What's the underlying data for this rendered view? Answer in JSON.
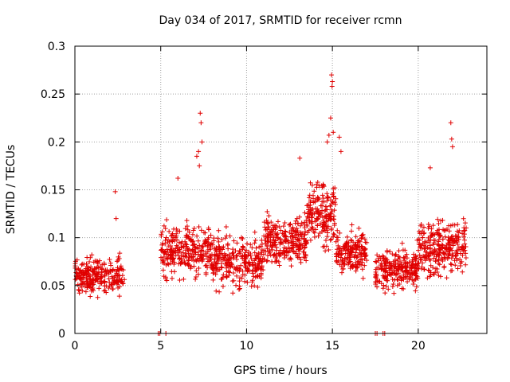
{
  "chart_data": {
    "type": "scatter",
    "title": "Day 034 of 2017, SRMTID for receiver rcmn",
    "xlabel": "GPS time / hours",
    "ylabel": "SRMTID / TECUs",
    "xlim": [
      0,
      24
    ],
    "ylim": [
      0,
      0.3
    ],
    "x_ticks": [
      0,
      5,
      10,
      15,
      20
    ],
    "x_tick_labels": [
      "0",
      "5",
      "10",
      "15",
      "20"
    ],
    "y_ticks": [
      0,
      0.05,
      0.1,
      0.15,
      0.2,
      0.25,
      0.3
    ],
    "y_tick_labels": [
      "0",
      "0.05",
      "0.1",
      "0.15",
      "0.2",
      "0.25",
      "0.3"
    ],
    "grid": true,
    "marker": "+",
    "series": [
      {
        "name": "SRMTID",
        "color": "#e00000",
        "segments": [
          {
            "x_start": 0.0,
            "x_end": 2.9,
            "base": 0.06,
            "spread": 0.018,
            "count": 260
          },
          {
            "x_start": 5.0,
            "x_end": 8.0,
            "base": 0.085,
            "spread": 0.025,
            "count": 280
          },
          {
            "x_start": 8.0,
            "x_end": 11.0,
            "base": 0.075,
            "spread": 0.025,
            "count": 280
          },
          {
            "x_start": 11.0,
            "x_end": 13.5,
            "base": 0.095,
            "spread": 0.025,
            "count": 260
          },
          {
            "x_start": 13.5,
            "x_end": 15.2,
            "base": 0.125,
            "spread": 0.03,
            "count": 180
          },
          {
            "x_start": 15.2,
            "x_end": 17.0,
            "base": 0.085,
            "spread": 0.022,
            "count": 180
          },
          {
            "x_start": 17.5,
            "x_end": 20.0,
            "base": 0.068,
            "spread": 0.02,
            "count": 240
          },
          {
            "x_start": 20.0,
            "x_end": 22.8,
            "base": 0.09,
            "spread": 0.028,
            "count": 280
          }
        ],
        "highlights": [
          {
            "x": 7.3,
            "y": 0.23
          },
          {
            "x": 7.35,
            "y": 0.22
          },
          {
            "x": 7.2,
            "y": 0.19
          },
          {
            "x": 7.1,
            "y": 0.185
          },
          {
            "x": 7.25,
            "y": 0.175
          },
          {
            "x": 7.4,
            "y": 0.2
          },
          {
            "x": 2.35,
            "y": 0.148
          },
          {
            "x": 2.4,
            "y": 0.12
          },
          {
            "x": 6.0,
            "y": 0.162
          },
          {
            "x": 13.1,
            "y": 0.183
          },
          {
            "x": 14.7,
            "y": 0.2
          },
          {
            "x": 14.8,
            "y": 0.207
          },
          {
            "x": 14.9,
            "y": 0.225
          },
          {
            "x": 14.95,
            "y": 0.27
          },
          {
            "x": 15.0,
            "y": 0.263
          },
          {
            "x": 14.98,
            "y": 0.258
          },
          {
            "x": 15.05,
            "y": 0.21
          },
          {
            "x": 15.4,
            "y": 0.205
          },
          {
            "x": 15.5,
            "y": 0.19
          },
          {
            "x": 20.7,
            "y": 0.173
          },
          {
            "x": 21.9,
            "y": 0.22
          },
          {
            "x": 21.95,
            "y": 0.203
          },
          {
            "x": 22.0,
            "y": 0.195
          }
        ],
        "zeros": [
          {
            "x": 4.85,
            "y": 0
          },
          {
            "x": 4.95,
            "y": 0
          },
          {
            "x": 5.3,
            "y": 0
          },
          {
            "x": 17.5,
            "y": 0
          },
          {
            "x": 17.6,
            "y": 0
          },
          {
            "x": 17.95,
            "y": 0
          },
          {
            "x": 18.05,
            "y": 0
          }
        ]
      }
    ]
  }
}
